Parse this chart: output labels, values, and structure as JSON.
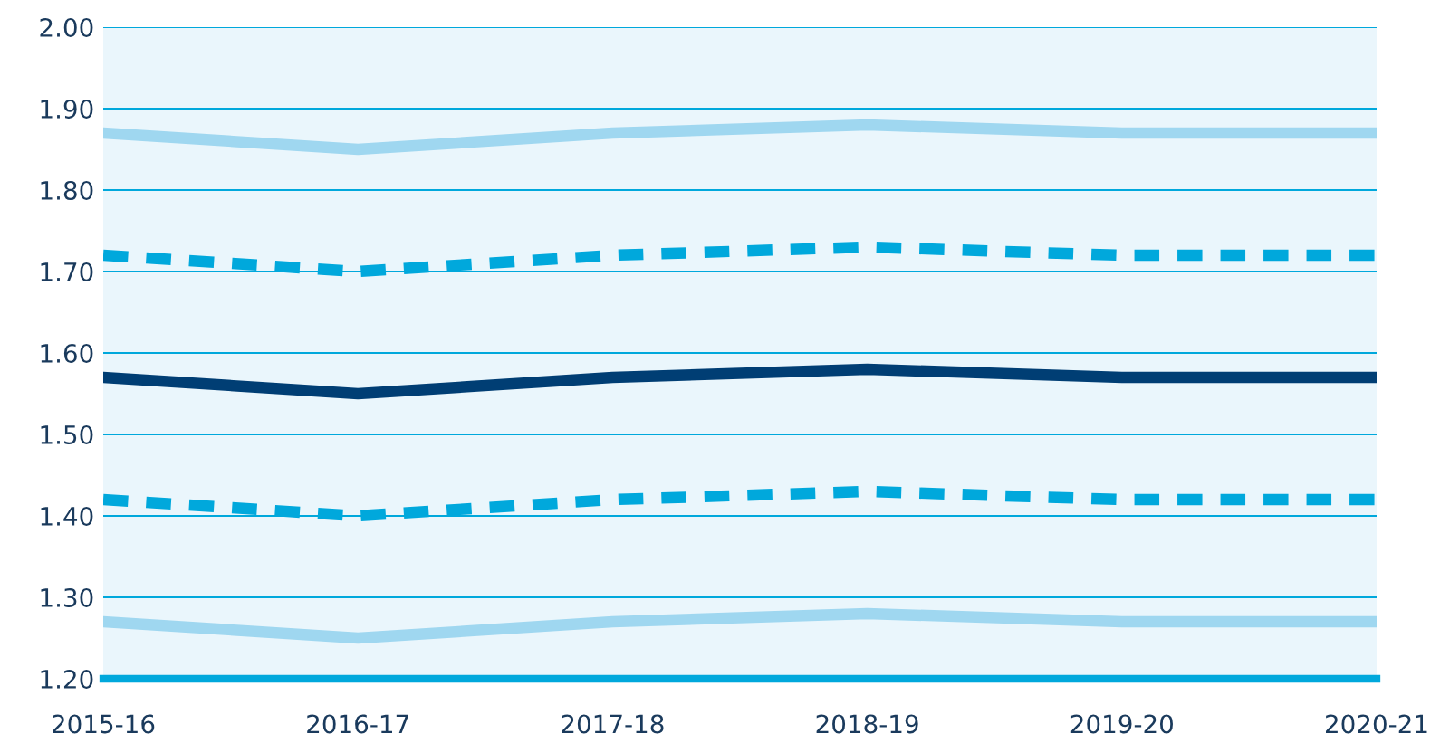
{
  "chart_data": {
    "type": "line",
    "categories": [
      "2015-16",
      "2016-17",
      "2017-18",
      "2018-19",
      "2019-20",
      "2020-21"
    ],
    "series": [
      {
        "color": "#9fd7f0",
        "line_style": "solid",
        "values": [
          1.87,
          1.85,
          1.87,
          1.88,
          1.87,
          1.87
        ]
      },
      {
        "color": "#00a8dc",
        "line_style": "dashed",
        "values": [
          1.72,
          1.7,
          1.72,
          1.73,
          1.72,
          1.72
        ]
      },
      {
        "color": "#003e74",
        "line_style": "solid",
        "values": [
          1.57,
          1.55,
          1.57,
          1.58,
          1.57,
          1.57
        ]
      },
      {
        "color": "#00a8dc",
        "line_style": "dashed",
        "values": [
          1.42,
          1.4,
          1.42,
          1.43,
          1.42,
          1.42
        ]
      },
      {
        "color": "#9fd7f0",
        "line_style": "solid",
        "values": [
          1.27,
          1.25,
          1.27,
          1.28,
          1.27,
          1.27
        ]
      }
    ],
    "ylim": [
      1.2,
      2.0
    ],
    "yticks": [
      {
        "value": 1.2,
        "label": "1.20"
      },
      {
        "value": 1.3,
        "label": "1.30"
      },
      {
        "value": 1.4,
        "label": "1.40"
      },
      {
        "value": 1.5,
        "label": "1.50"
      },
      {
        "value": 1.6,
        "label": "1.60"
      },
      {
        "value": 1.7,
        "label": "1.70"
      },
      {
        "value": 1.8,
        "label": "1.80"
      },
      {
        "value": 1.9,
        "label": "1.90"
      },
      {
        "value": 2.0,
        "label": "2.00"
      }
    ],
    "grid": "y",
    "legend": false,
    "marker": "none"
  }
}
